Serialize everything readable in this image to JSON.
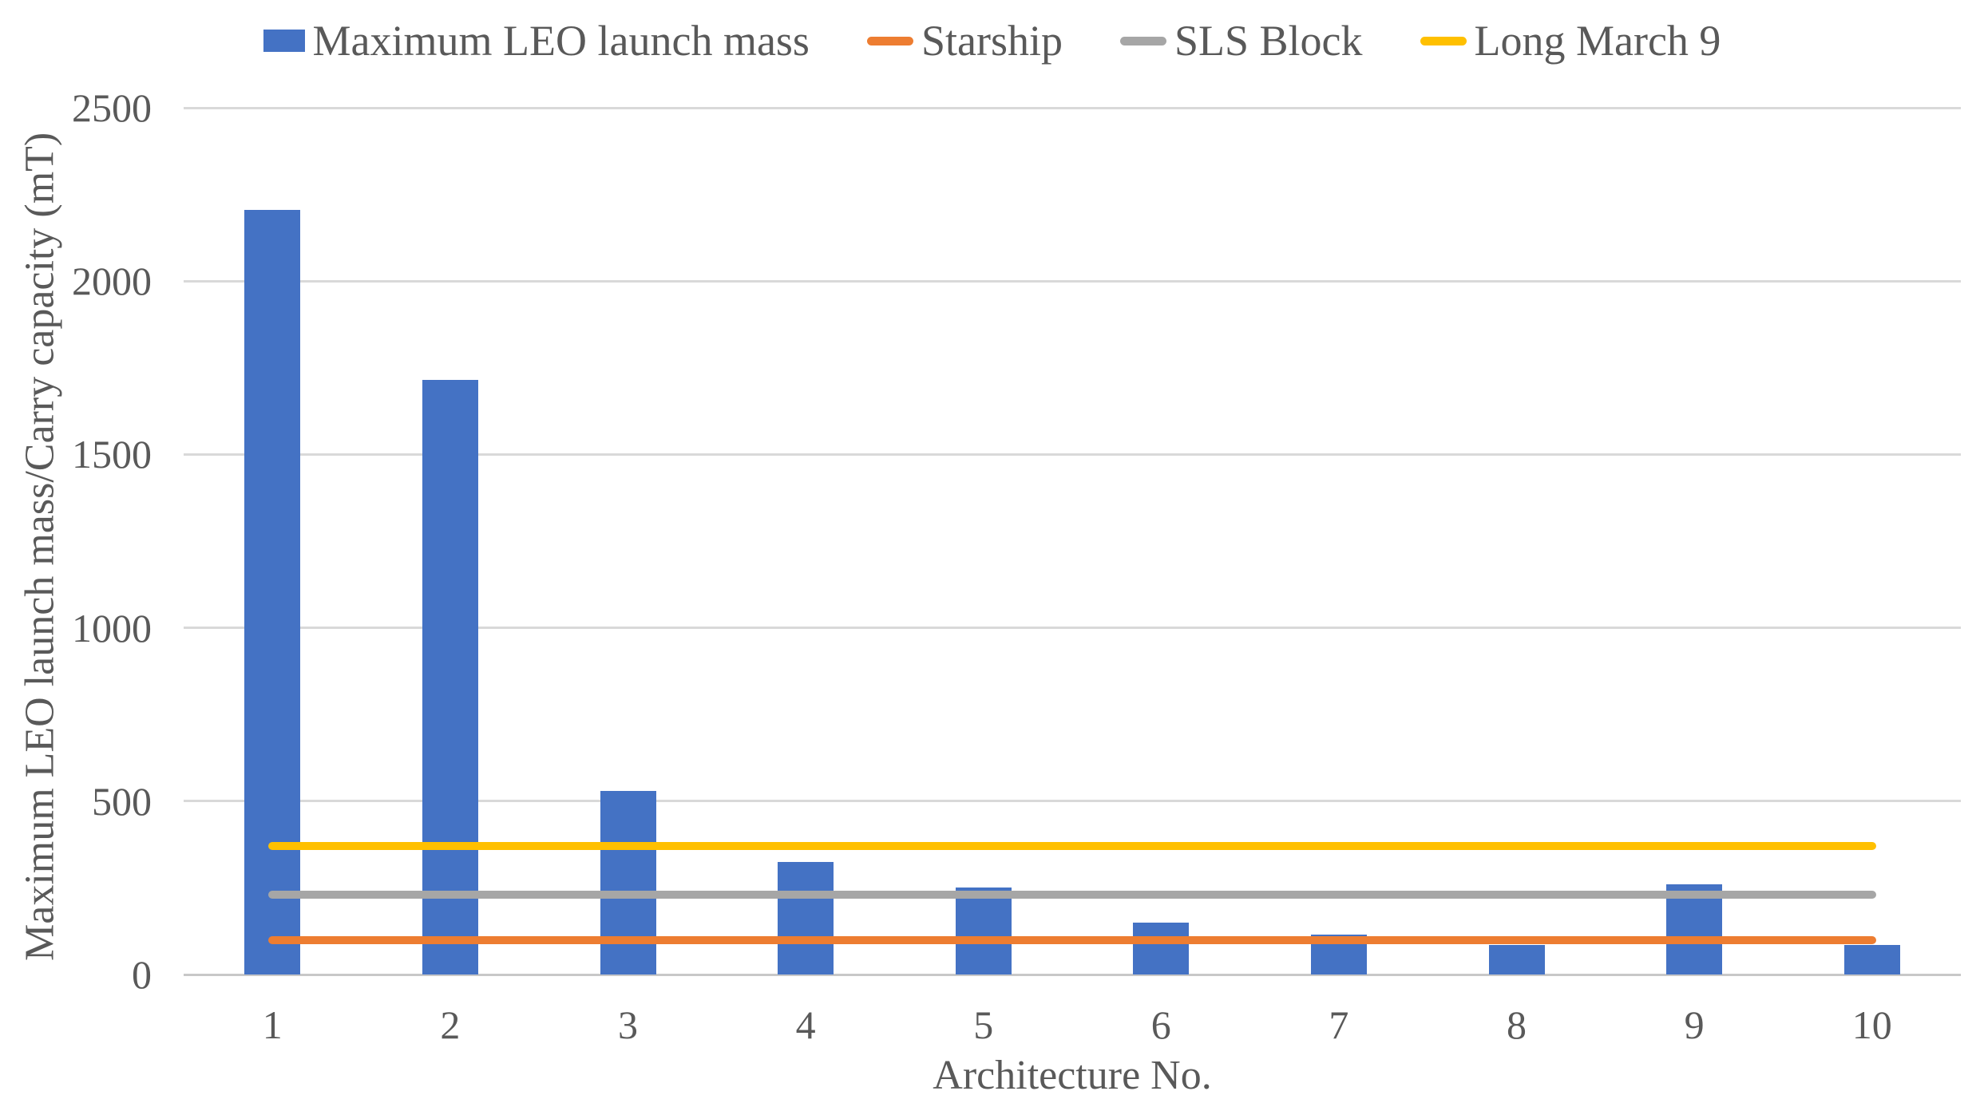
{
  "chart_data": {
    "type": "bar",
    "title": "",
    "categories": [
      "1",
      "2",
      "3",
      "4",
      "5",
      "6",
      "7",
      "8",
      "9",
      "10"
    ],
    "bar_series": {
      "name": "Maximum LEO launch mass",
      "color": "#4472C4",
      "values": [
        2205,
        1715,
        530,
        325,
        250,
        150,
        115,
        85,
        260,
        85
      ]
    },
    "line_series": [
      {
        "name": "Starship",
        "color": "#ED7D31",
        "value": 100
      },
      {
        "name": "SLS Block",
        "color": "#A6A6A6",
        "value": 230
      },
      {
        "name": "Long March 9",
        "color": "#FFC000",
        "value": 370
      }
    ],
    "xlabel": "Architecture No.",
    "ylabel": "Maximum LEO launch mass/Carry capacity (mT)",
    "ylim": [
      0,
      2500
    ],
    "yticks": [
      0,
      500,
      1000,
      1500,
      2000,
      2500
    ],
    "grid": true,
    "legend_position": "top"
  },
  "colors": {
    "background": "#FFFFFF",
    "text": "#595959",
    "gridline": "#D9D9D9",
    "axisline": "#C8C8C8"
  }
}
